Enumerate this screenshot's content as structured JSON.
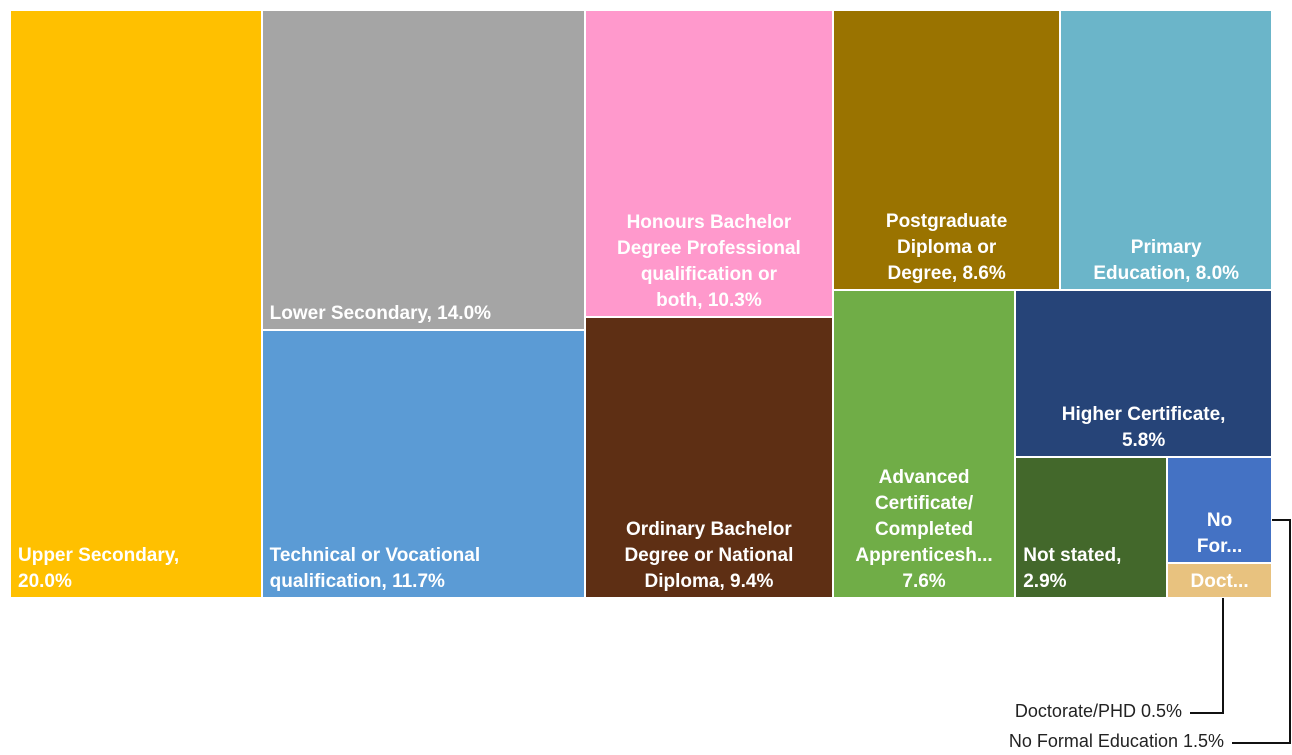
{
  "chart_data": {
    "type": "treemap",
    "labels": [
      "Upper Secondary,\n20.0%",
      "Lower Secondary, 14.0%",
      "Technical or Vocational\nqualification, 11.7%",
      "Honours Bachelor\nDegree Professional\nqualification or\nboth, 10.3%",
      "Ordinary Bachelor\nDegree or National\nDiploma, 9.4%",
      "Postgraduate\nDiploma or\nDegree, 8.6%",
      "Primary\nEducation, 8.0%",
      "Advanced\nCertificate/\nCompleted\nApprenticesh...\n7.6%",
      "Higher Certificate,\n5.8%",
      "Not stated,\n2.9%",
      "No\nFor...",
      "Doct..."
    ],
    "values": [
      20.0,
      14.0,
      11.7,
      10.3,
      9.4,
      8.6,
      8.0,
      7.6,
      5.8,
      2.9,
      1.5,
      0.5
    ],
    "colors": [
      "#ffc000",
      "#a5a5a5",
      "#5b9bd5",
      "#ff99cc",
      "#5e2f14",
      "#9a7300",
      "#6bb5c9",
      "#70ad47",
      "#264478",
      "#43682b",
      "#4472c4",
      "#e8c27f"
    ],
    "annotations": [
      "Doctorate/PHD 0.5%",
      "No Formal Education 1.5%"
    ]
  }
}
